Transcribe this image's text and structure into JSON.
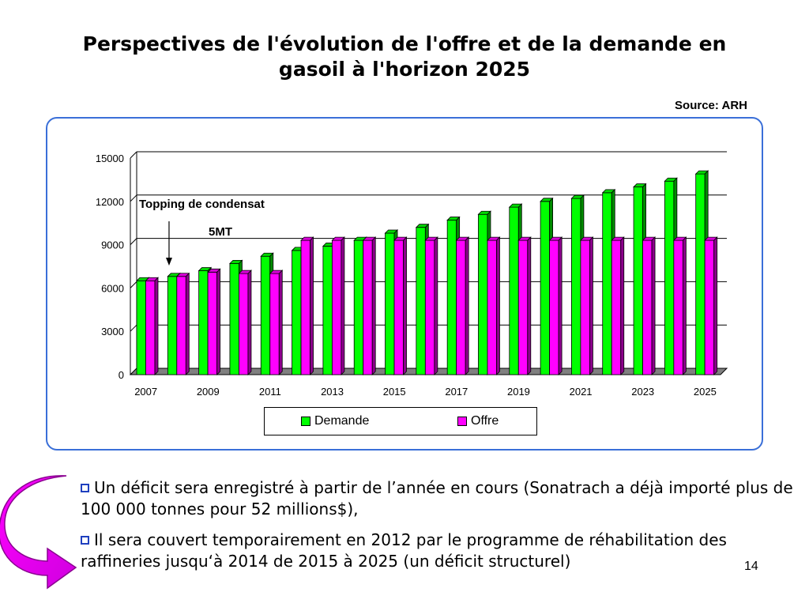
{
  "slide": {
    "title_line1": "Perspectives de l'évolution de l'offre et de la demande en",
    "title_line2": "gasoil à l'horizon 2025",
    "source": "Source: ARH",
    "page_number": "14",
    "bullets": [
      "Un déficit sera enregistré à partir de l’année en cours (Sonatrach a déjà importé  plus de 100 000 tonnes pour 52 millions$),",
      "Il sera couvert temporairement en 2012 par le programme de réhabilitation des raffineries jusqu‘à 2014 de 2015 à 2025 (un déficit structurel)"
    ]
  },
  "chart_data": {
    "type": "bar",
    "title": "",
    "xlabel": "",
    "ylabel": "",
    "categories": [
      "2007",
      "2008",
      "2009",
      "2010",
      "2011",
      "2012",
      "2013",
      "2014",
      "2015",
      "2016",
      "2017",
      "2018",
      "2019",
      "2020",
      "2021",
      "2022",
      "2023",
      "2024",
      "2025"
    ],
    "x_tick_labels": [
      "2007",
      "2009",
      "2011",
      "2013",
      "2015",
      "2017",
      "2019",
      "2021",
      "2023",
      "2025"
    ],
    "ylim": [
      0,
      15000
    ],
    "y_ticks": [
      0,
      3000,
      6000,
      9000,
      12000,
      15000
    ],
    "series": [
      {
        "name": "Demande",
        "color": "#00ff00",
        "values": [
          6500,
          6800,
          7200,
          7700,
          8200,
          8600,
          8900,
          9300,
          9800,
          10200,
          10700,
          11100,
          11600,
          12000,
          12200,
          12600,
          13000,
          13400,
          13900
        ]
      },
      {
        "name": "Offre",
        "color": "#ff00ff",
        "values": [
          6500,
          6800,
          7100,
          7000,
          7000,
          9300,
          9300,
          9300,
          9300,
          9300,
          9300,
          9300,
          9300,
          9300,
          9300,
          9300,
          9300,
          9300,
          9300
        ]
      }
    ],
    "annotations": [
      {
        "text": "Topping de condensat",
        "category": "2008",
        "kind": "label"
      },
      {
        "text": "5MT",
        "category": "2008",
        "kind": "label"
      }
    ],
    "grid": true,
    "legend_position": "bottom"
  }
}
